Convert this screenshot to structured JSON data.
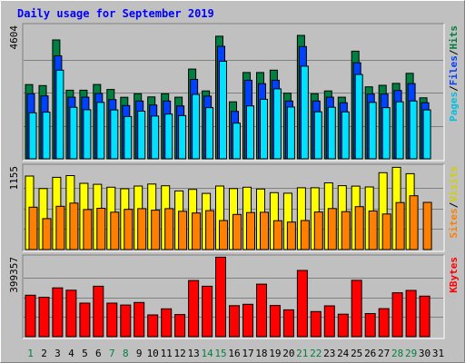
{
  "chart_data": {
    "type": "bar",
    "title": "Daily usage for September 2019",
    "categories": [
      "1",
      "2",
      "3",
      "4",
      "5",
      "6",
      "7",
      "8",
      "9",
      "10",
      "11",
      "12",
      "13",
      "14",
      "15",
      "16",
      "17",
      "18",
      "19",
      "20",
      "21",
      "22",
      "23",
      "24",
      "25",
      "26",
      "27",
      "28",
      "29",
      "30",
      "31"
    ],
    "weekend_days": [
      "1",
      "7",
      "8",
      "14",
      "15",
      "21",
      "22",
      "28",
      "29"
    ],
    "panels": [
      {
        "id": "hits",
        "max_label": "4604",
        "ylim": [
          0,
          4604
        ],
        "labels": [
          "Pages",
          "Files",
          "Hits"
        ],
        "series": [
          {
            "name": "Hits",
            "color": "#008040",
            "values": [
              2580,
              2545,
              4130,
              2385,
              2385,
              2583,
              2410,
              2139,
              2260,
              2150,
              2260,
              2140,
              3120,
              2360,
              4260,
              1980,
              3000,
              3000,
              3080,
              2280,
              4290,
              2260,
              2360,
              2140,
              3740,
              2500,
              2555,
              2620,
              2970,
              2120,
              0
            ]
          },
          {
            "name": "Files",
            "color": "#0040ff",
            "values": [
              2260,
              2185,
              3580,
              2140,
              2140,
              2270,
              2060,
              1850,
              2010,
              1870,
              2010,
              1840,
              2760,
              2180,
              3910,
              1650,
              2730,
              2610,
              2730,
              2010,
              3900,
              2010,
              2140,
              1950,
              3340,
              2250,
              2250,
              2375,
              2615,
              1950,
              0
            ]
          },
          {
            "name": "Pages",
            "color": "#00e0ff",
            "values": [
              1600,
              1620,
              3080,
              1790,
              1705,
              1960,
              1700,
              1470,
              1655,
              1485,
              1555,
              1500,
              2240,
              1780,
              3390,
              1240,
              1840,
              2070,
              2430,
              1800,
              3220,
              1635,
              1790,
              1630,
              2930,
              1960,
              1780,
              1980,
              2010,
              1700,
              0
            ]
          }
        ]
      },
      {
        "id": "visits",
        "max_label": "1155",
        "ylim": [
          0,
          1155
        ],
        "labels": [
          "Sites",
          "Visits"
        ],
        "series": [
          {
            "name": "Visits",
            "color": "#ffff00",
            "values": [
              1028,
              853,
              1010,
              1035,
              927,
              912,
              872,
              850,
              888,
              917,
              892,
              820,
              841,
              786,
              889,
              853,
              872,
              846,
              796,
              788,
              864,
              864,
              933,
              893,
              887,
              876,
              1075,
              1150,
              1061,
              0,
              0
            ]
          },
          {
            "name": "Sites",
            "color": "#ff8000",
            "values": [
              593,
              433,
              606,
              650,
              560,
              578,
              523,
              562,
              573,
              551,
              572,
              535,
              511,
              544,
              406,
              491,
              518,
              522,
              403,
              385,
              406,
              526,
              574,
              531,
              600,
              540,
              498,
              658,
              753,
              660,
              0
            ]
          }
        ]
      },
      {
        "id": "kbytes",
        "max_label": "399357",
        "ylim": [
          0,
          399357
        ],
        "labels": [
          "KBytes"
        ],
        "series": [
          {
            "name": "KBytes",
            "color": "#ff0000",
            "values": [
              210000,
              199000,
              247000,
              235000,
              170000,
              255000,
              170000,
              160000,
              173000,
              110000,
              141000,
              112000,
              284000,
              255000,
              402000,
              157000,
              164000,
              266000,
              158000,
              136000,
              335000,
              127000,
              156000,
              114000,
              285000,
              117000,
              142000,
              222000,
              234000,
              205000,
              0
            ]
          }
        ]
      }
    ]
  }
}
